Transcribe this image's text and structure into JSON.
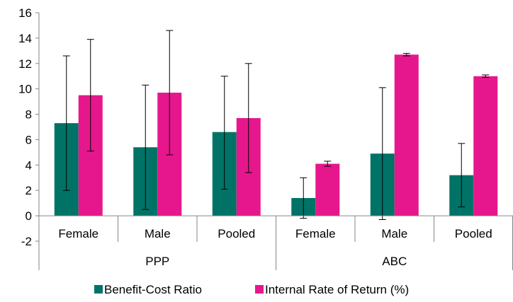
{
  "chart_data": {
    "type": "bar",
    "title": "",
    "xlabel": "",
    "ylabel": "",
    "ylim": [
      -2,
      16
    ],
    "yticks": [
      -2,
      0,
      2,
      4,
      6,
      8,
      10,
      12,
      14,
      16
    ],
    "ytick_labels": [
      "-2",
      "0",
      "2",
      "4",
      "6",
      "8",
      "10",
      "12",
      "14",
      "16"
    ],
    "grid": false,
    "legend_position": "bottom",
    "categories": [
      "Female",
      "Male",
      "Pooled",
      "Female",
      "Male",
      "Pooled"
    ],
    "groups": [
      {
        "label": "PPP",
        "categories": [
          "Female",
          "Male",
          "Pooled"
        ]
      },
      {
        "label": "ABC",
        "categories": [
          "Female",
          "Male",
          "Pooled"
        ]
      }
    ],
    "series": [
      {
        "name": "Benefit-Cost Ratio",
        "color": "#007366",
        "values": [
          7.3,
          5.4,
          6.6,
          1.4,
          4.9,
          3.2
        ],
        "error_low": [
          2.0,
          0.5,
          2.1,
          -0.2,
          -0.3,
          0.7
        ],
        "error_high": [
          12.6,
          10.3,
          11.0,
          3.0,
          10.1,
          5.7
        ]
      },
      {
        "name": "Internal Rate of Return (%)",
        "color": "#e6178c",
        "values": [
          9.5,
          9.7,
          7.7,
          4.1,
          12.7,
          11.0
        ],
        "error_low": [
          5.1,
          4.8,
          3.4,
          3.9,
          12.6,
          10.9
        ],
        "error_high": [
          13.9,
          14.6,
          12.0,
          4.3,
          12.8,
          11.1
        ]
      }
    ]
  }
}
